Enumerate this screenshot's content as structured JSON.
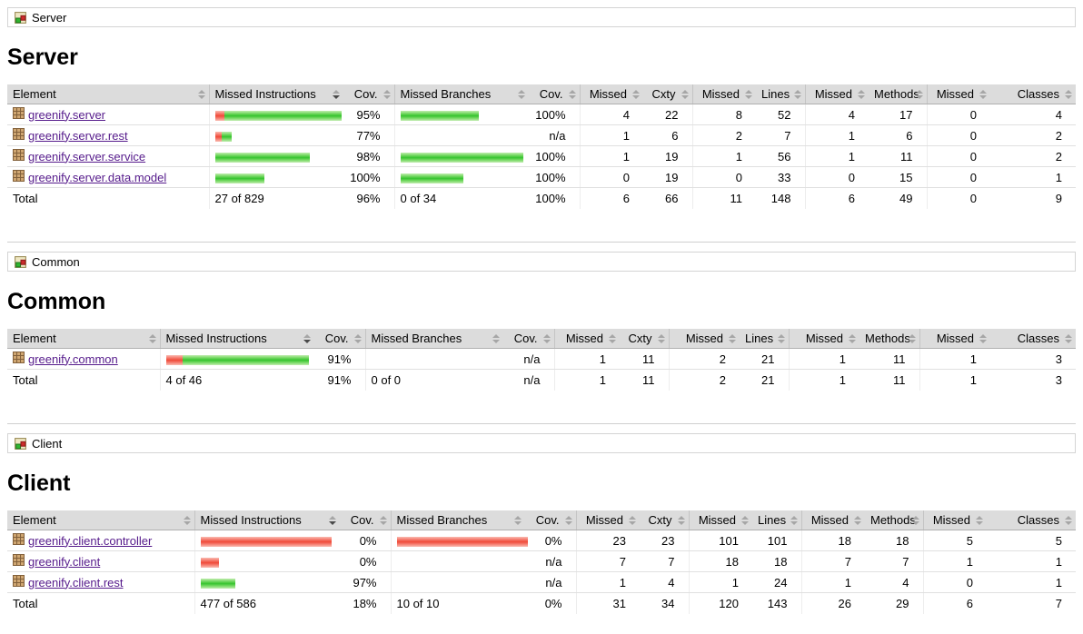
{
  "colors": {
    "bar_green": "#36c32f",
    "bar_red": "#ef4a38",
    "link_purple": "#551a8b",
    "header_bg": "#dcdcdc"
  },
  "columns": [
    {
      "id": "element",
      "label": "Element",
      "type": "name",
      "sort": "both",
      "icon": "sort-icon"
    },
    {
      "id": "missed-instructions",
      "label": "Missed Instructions",
      "type": "bar",
      "sort": "desc",
      "icon": "sort-icon"
    },
    {
      "id": "instructions-cov",
      "label": "Cov.",
      "type": "ctr2",
      "sort": "both",
      "icon": "sort-icon"
    },
    {
      "id": "missed-branches",
      "label": "Missed Branches",
      "type": "bar",
      "sort": "both",
      "icon": "sort-icon"
    },
    {
      "id": "branches-cov",
      "label": "Cov.",
      "type": "ctr2",
      "sort": "both",
      "icon": "sort-icon"
    },
    {
      "id": "missed-cxty",
      "label": "Missed",
      "type": "ctr1",
      "sort": "both",
      "icon": "sort-icon"
    },
    {
      "id": "cxty",
      "label": "Cxty",
      "type": "ctr2",
      "sort": "both",
      "icon": "sort-icon"
    },
    {
      "id": "missed-lines",
      "label": "Missed",
      "type": "ctr1",
      "sort": "both",
      "icon": "sort-icon"
    },
    {
      "id": "lines",
      "label": "Lines",
      "type": "ctr2",
      "sort": "both",
      "icon": "sort-icon"
    },
    {
      "id": "missed-methods",
      "label": "Missed",
      "type": "ctr1",
      "sort": "both",
      "icon": "sort-icon"
    },
    {
      "id": "methods",
      "label": "Methods",
      "type": "ctr2",
      "sort": "both",
      "icon": "sort-icon"
    },
    {
      "id": "missed-classes",
      "label": "Missed",
      "type": "ctr1",
      "sort": "both",
      "icon": "sort-icon"
    },
    {
      "id": "classes",
      "label": "Classes",
      "type": "ctr2",
      "sort": "both",
      "icon": "sort-icon"
    }
  ],
  "sections": [
    {
      "breadcrumb": {
        "icon": "group-icon",
        "label": "Server"
      },
      "heading": "Server",
      "rows": [
        {
          "name": "greenify.server",
          "icon": "package-icon",
          "instr_bar": {
            "missed": 10,
            "covered": 129
          },
          "instr_cov": "95%",
          "branch_bar": {
            "missed": 0,
            "covered": 86
          },
          "branch_cov": "100%",
          "ctrs": [
            4,
            22,
            8,
            52,
            4,
            17,
            0,
            4
          ]
        },
        {
          "name": "greenify.server.rest",
          "icon": "package-icon",
          "instr_bar": {
            "missed": 7,
            "covered": 11
          },
          "instr_cov": "77%",
          "branch_bar": {
            "missed": 0,
            "covered": 0
          },
          "branch_cov": "n/a",
          "ctrs": [
            1,
            6,
            2,
            7,
            1,
            6,
            0,
            2
          ]
        },
        {
          "name": "greenify.server.service",
          "icon": "package-icon",
          "instr_bar": {
            "missed": 0,
            "covered": 104
          },
          "instr_cov": "98%",
          "branch_bar": {
            "missed": 0,
            "covered": 135
          },
          "branch_cov": "100%",
          "ctrs": [
            1,
            19,
            1,
            56,
            1,
            11,
            0,
            2
          ]
        },
        {
          "name": "greenify.server.data.model",
          "icon": "package-icon",
          "instr_bar": {
            "missed": 0,
            "covered": 54
          },
          "instr_cov": "100%",
          "branch_bar": {
            "missed": 0,
            "covered": 69
          },
          "branch_cov": "100%",
          "ctrs": [
            0,
            19,
            0,
            33,
            0,
            15,
            0,
            1
          ]
        }
      ],
      "total": {
        "label": "Total",
        "instr": "27 of 829",
        "instr_cov": "96%",
        "branch": "0 of 34",
        "branch_cov": "100%",
        "ctrs": [
          6,
          66,
          11,
          148,
          6,
          49,
          0,
          9
        ]
      }
    },
    {
      "breadcrumb": {
        "icon": "group-icon",
        "label": "Common"
      },
      "heading": "Common",
      "rows": [
        {
          "name": "greenify.common",
          "icon": "package-icon",
          "instr_bar": {
            "missed": 18,
            "covered": 139
          },
          "instr_cov": "91%",
          "branch_bar": {
            "missed": 0,
            "covered": 0
          },
          "branch_cov": "n/a",
          "ctrs": [
            1,
            11,
            2,
            21,
            1,
            11,
            1,
            3
          ]
        }
      ],
      "total": {
        "label": "Total",
        "instr": "4 of 46",
        "instr_cov": "91%",
        "branch": "0 of 0",
        "branch_cov": "n/a",
        "ctrs": [
          1,
          11,
          2,
          21,
          1,
          11,
          1,
          3
        ]
      }
    },
    {
      "breadcrumb": {
        "icon": "group-icon",
        "label": "Client"
      },
      "heading": "Client",
      "rows": [
        {
          "name": "greenify.client.controller",
          "icon": "package-icon",
          "instr_bar": {
            "missed": 144,
            "covered": 0
          },
          "instr_cov": "0%",
          "branch_bar": {
            "missed": 144,
            "covered": 0
          },
          "branch_cov": "0%",
          "ctrs": [
            23,
            23,
            101,
            101,
            18,
            18,
            5,
            5
          ]
        },
        {
          "name": "greenify.client",
          "icon": "package-icon",
          "instr_bar": {
            "missed": 20,
            "covered": 0
          },
          "instr_cov": "0%",
          "branch_bar": {
            "missed": 0,
            "covered": 0
          },
          "branch_cov": "n/a",
          "ctrs": [
            7,
            7,
            18,
            18,
            7,
            7,
            1,
            1
          ]
        },
        {
          "name": "greenify.client.rest",
          "icon": "package-icon",
          "instr_bar": {
            "missed": 0,
            "covered": 38
          },
          "instr_cov": "97%",
          "branch_bar": {
            "missed": 0,
            "covered": 0
          },
          "branch_cov": "n/a",
          "ctrs": [
            1,
            4,
            1,
            24,
            1,
            4,
            0,
            1
          ]
        }
      ],
      "total": {
        "label": "Total",
        "instr": "477 of 586",
        "instr_cov": "18%",
        "branch": "10 of 10",
        "branch_cov": "0%",
        "ctrs": [
          31,
          34,
          120,
          143,
          26,
          29,
          6,
          7
        ]
      }
    }
  ]
}
